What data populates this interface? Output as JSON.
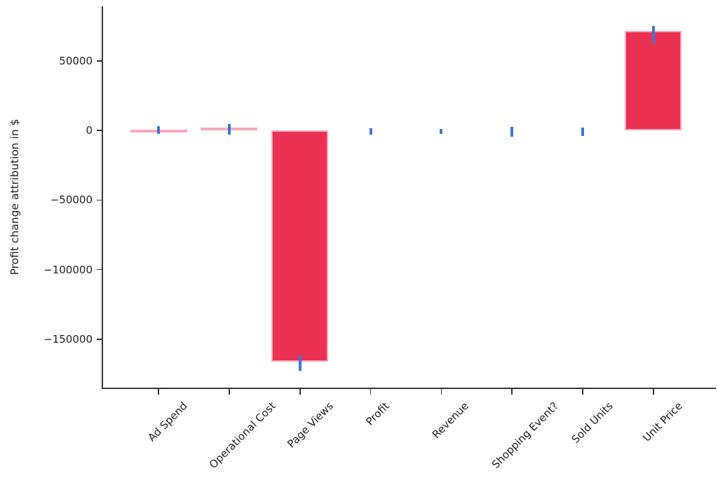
{
  "chart_data": {
    "type": "bar",
    "title": "",
    "xlabel": "",
    "ylabel": "Profit change attribution in $",
    "categories": [
      "Ad Spend",
      "Operational Cost",
      "Page Views",
      "Profit",
      "Revenue",
      "Shopping Event?",
      "Sold Units",
      "Unit Price"
    ],
    "values": [
      800,
      2000,
      -166500,
      0,
      0,
      0,
      0,
      71800
    ],
    "ci_low": [
      -2100,
      -2900,
      -173000,
      -2900,
      -2400,
      -4400,
      -3900,
      62800
    ],
    "ci_high": [
      3200,
      4700,
      -162000,
      1700,
      1200,
      2700,
      2200,
      75400
    ],
    "yticks": [
      50000,
      0,
      -50000,
      -100000,
      -150000
    ],
    "ytick_labels": [
      "50000",
      "0",
      "−50000",
      "−100000",
      "−150000"
    ],
    "ylim": [
      -185000,
      89000
    ],
    "grid": false,
    "legend": null,
    "error_bar_style": "vertical-line-no-caps",
    "x_label_rotation_deg": 45,
    "colors": {
      "bar_fill": "#ED3152",
      "bar_edge": "#F8A8BC",
      "error_bar": "#3F76D6",
      "axis": "#363636",
      "text": "#1F1F1F",
      "background": "#FFFFFF"
    }
  }
}
